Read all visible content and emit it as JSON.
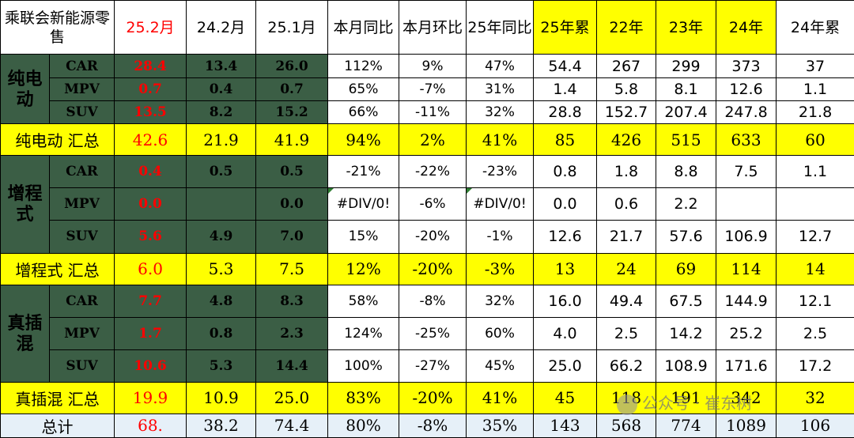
{
  "headers": [
    "乘联会新能源零售",
    "25.2月",
    "24.2月",
    "25.1月",
    "本月同比",
    "本月环比",
    "25年同比",
    "25年累",
    "22年",
    "23年",
    "24年",
    "24年累"
  ],
  "groups": {
    "bev": "纯电动",
    "erev": "增程式",
    "phev": "真插混"
  },
  "rows": {
    "bev_car": [
      "CAR",
      "28.4",
      "13.4",
      "26.0",
      "112%",
      "9%",
      "47%",
      "54.4",
      "267",
      "299",
      "373",
      "37"
    ],
    "bev_mpv": [
      "MPV",
      "0.7",
      "0.4",
      "0.7",
      "65%",
      "-7%",
      "31%",
      "1.4",
      "5.8",
      "8.1",
      "12.6",
      "1.1"
    ],
    "bev_suv": [
      "SUV",
      "13.5",
      "8.2",
      "15.2",
      "66%",
      "-11%",
      "32%",
      "28.8",
      "152.7",
      "207.4",
      "247.8",
      "21.8"
    ],
    "bev_sum": [
      "纯电动 汇总",
      "42.6",
      "21.9",
      "41.9",
      "94%",
      "2%",
      "41%",
      "85",
      "426",
      "515",
      "633",
      "60"
    ],
    "erev_car": [
      "CAR",
      "0.4",
      "0.5",
      "0.5",
      "-21%",
      "-22%",
      "-23%",
      "0.8",
      "1.8",
      "8.8",
      "7.5",
      "1.1"
    ],
    "erev_mpv": [
      "MPV",
      "0.0",
      "",
      "0.0",
      "#DIV/0!",
      "-6%",
      "#DIV/0!",
      "0.0",
      "0.6",
      "2.2",
      "",
      ""
    ],
    "erev_suv": [
      "SUV",
      "5.6",
      "4.9",
      "7.0",
      "15%",
      "-20%",
      "-1%",
      "12.6",
      "21.7",
      "57.6",
      "106.9",
      "12.7"
    ],
    "erev_sum": [
      "增程式 汇总",
      "6.0",
      "5.3",
      "7.5",
      "12%",
      "-20%",
      "-3%",
      "13",
      "24",
      "69",
      "114",
      "14"
    ],
    "phev_car": [
      "CAR",
      "7.7",
      "4.8",
      "8.3",
      "58%",
      "-8%",
      "32%",
      "16.0",
      "49.4",
      "67.5",
      "144.9",
      "12.1"
    ],
    "phev_mpv": [
      "MPV",
      "1.7",
      "0.8",
      "2.3",
      "124%",
      "-25%",
      "60%",
      "4.0",
      "2.5",
      "14.2",
      "25.2",
      "2.5"
    ],
    "phev_suv": [
      "SUV",
      "10.6",
      "5.3",
      "14.4",
      "100%",
      "-27%",
      "45%",
      "25.0",
      "66.2",
      "108.9",
      "171.6",
      "17.2"
    ],
    "phev_sum": [
      "真插混 汇总",
      "19.9",
      "10.9",
      "25.0",
      "83%",
      "-20%",
      "41%",
      "45",
      "118",
      "191",
      "342",
      "32"
    ],
    "total": [
      "总计",
      "68.",
      "38.2",
      "74.4",
      "80%",
      "-8%",
      "35%",
      "143",
      "568",
      "774",
      "1089",
      "106"
    ]
  },
  "watermark": "公众号 · 崔东树",
  "colors": {
    "highlight": "#ffff00",
    "group_bg": "#3b5e45",
    "accent_red": "#ff0000",
    "total_bg": "#e6f0f8"
  }
}
